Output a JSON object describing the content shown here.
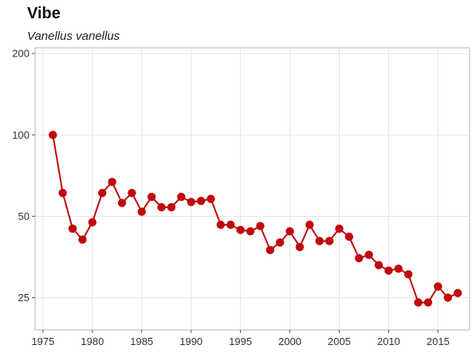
{
  "header": {
    "title": "Vibe",
    "subtitle": "Vanellus vanellus"
  },
  "colors": {
    "series": "#c0080c",
    "grid": "#e6e6e6",
    "frame": "#b3b3b3"
  },
  "chart_data": {
    "type": "line",
    "title": "Vibe",
    "subtitle": "Vanellus vanellus",
    "xlabel": "",
    "ylabel": "",
    "y_scale": "log",
    "xlim": [
      1974.2,
      2018.2
    ],
    "ylim": [
      19,
      210
    ],
    "x_ticks": [
      1975,
      1980,
      1985,
      1990,
      1995,
      2000,
      2005,
      2010,
      2015
    ],
    "y_ticks": [
      25,
      50,
      100,
      200
    ],
    "grid": true,
    "legend": "none",
    "series": [
      {
        "x": [
          1976,
          1977,
          1978,
          1979,
          1980,
          1981,
          1982,
          1983,
          1984,
          1985,
          1986,
          1987,
          1988,
          1989,
          1990,
          1991,
          1992,
          1993,
          1994,
          1995,
          1996,
          1997,
          1998,
          1999,
          2000,
          2001,
          2002,
          2003,
          2004,
          2005,
          2006,
          2007,
          2008,
          2009,
          2010,
          2011,
          2012,
          2013,
          2014,
          2015,
          2016,
          2017
        ],
        "values": [
          100,
          61,
          45,
          41,
          47.5,
          61,
          67,
          56,
          61,
          52,
          59,
          54,
          54,
          59,
          56.5,
          57,
          58,
          46.5,
          46.5,
          44.5,
          44,
          46,
          37.5,
          40,
          44,
          38.5,
          46.5,
          40.5,
          40.5,
          45,
          42,
          35,
          36,
          33,
          31.5,
          32,
          30.5,
          24,
          24,
          27.5,
          25,
          26
        ]
      }
    ]
  }
}
